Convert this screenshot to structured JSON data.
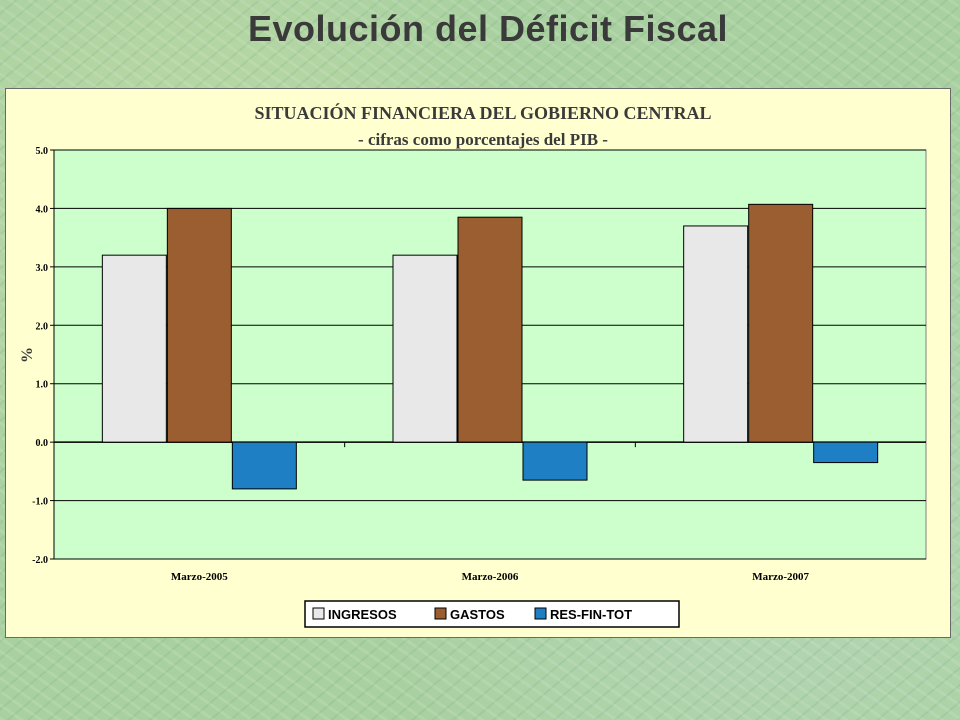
{
  "slide": {
    "title": "Evolución del Déficit Fiscal"
  },
  "chart_data": {
    "type": "bar",
    "title": "SITUACIÓN FINANCIERA DEL GOBIERNO CENTRAL",
    "subtitle": "- cifras como porcentajes del PIB -",
    "ylabel": "%",
    "xlabel": "",
    "ylim": [
      -2.0,
      5.0
    ],
    "yticks": [
      "5.0",
      "4.0",
      "3.0",
      "2.0",
      "1.0",
      "0.0",
      "-1.0",
      "-2.0"
    ],
    "categories": [
      "Marzo-2005",
      "Marzo-2006",
      "Marzo-2007"
    ],
    "series": [
      {
        "name": "INGRESOS",
        "values": [
          3.2,
          3.2,
          3.7
        ],
        "color": "#e8e8e8"
      },
      {
        "name": "GASTOS",
        "values": [
          4.0,
          3.85,
          4.07
        ],
        "color": "#9b5e30"
      },
      {
        "name": "RES-FIN-TOT",
        "values": [
          -0.8,
          -0.65,
          -0.35
        ],
        "color": "#1f7fc4"
      }
    ],
    "grid": true,
    "legend_position": "bottom",
    "plot_background": "#ccffcc",
    "frame_background": "#ffffd0"
  }
}
